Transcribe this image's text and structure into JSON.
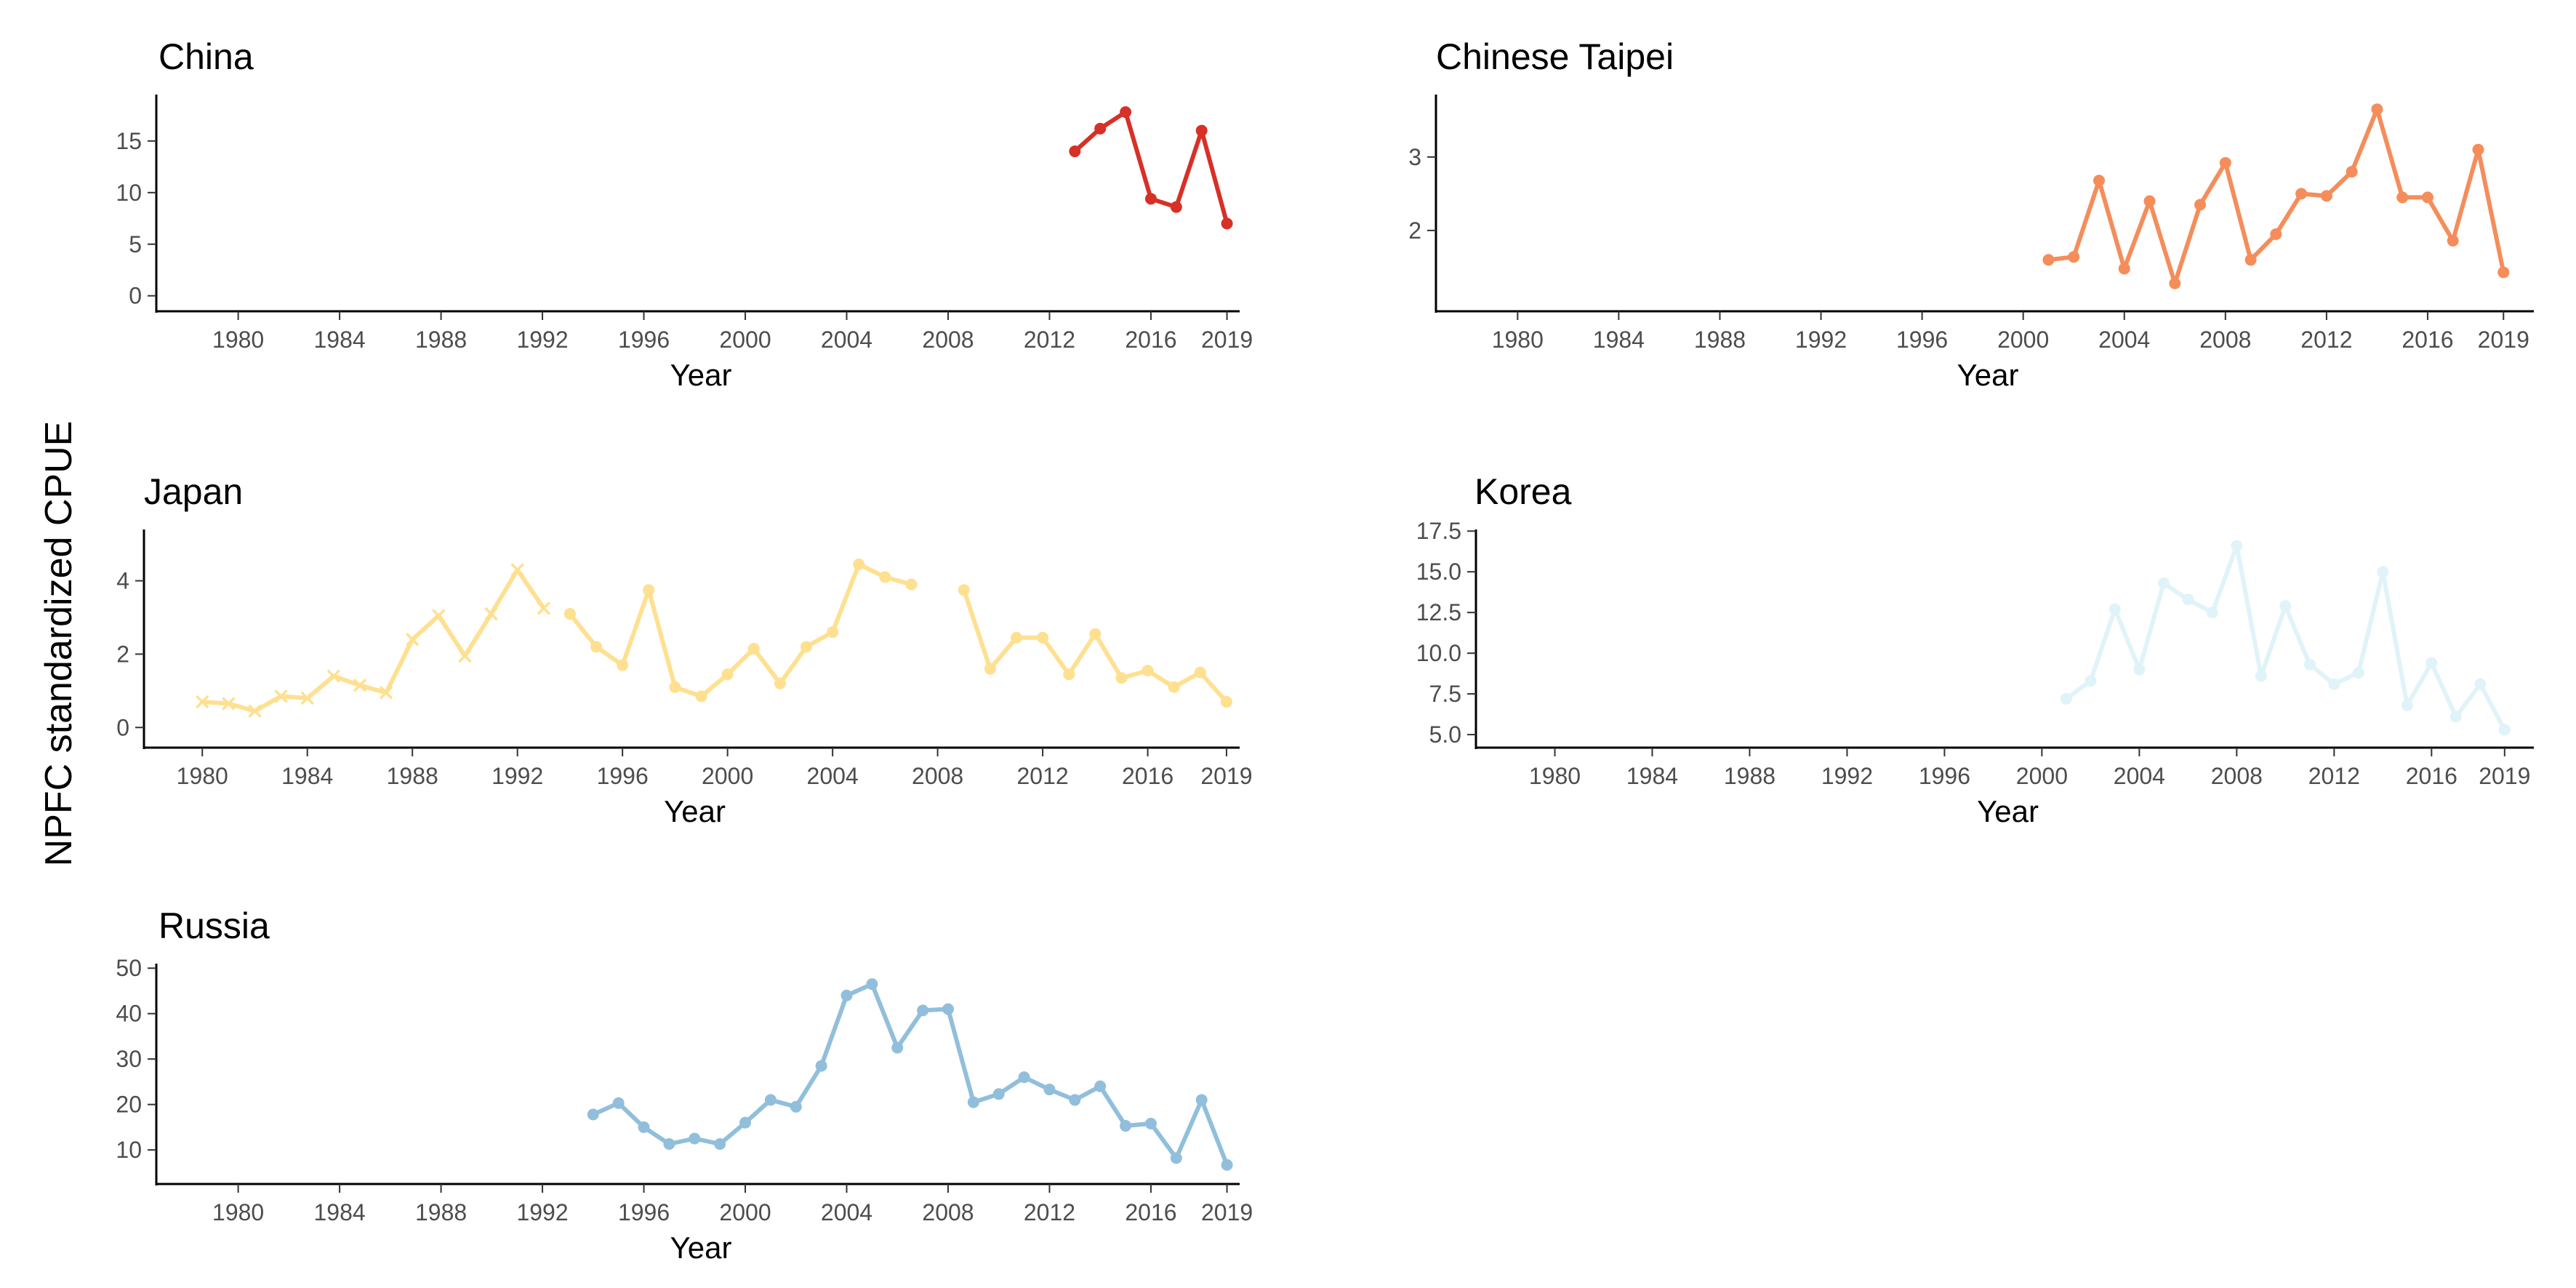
{
  "figure": {
    "ylabel": "NPFC standardized CPUE"
  },
  "chart_data": [
    {
      "type": "line",
      "title": "China",
      "xlabel": "Year",
      "ylabel": "",
      "color": "#d73027",
      "xlim": [
        1977,
        2019.5
      ],
      "ylim": [
        -1.5,
        19.5
      ],
      "xticks": [
        1980,
        1984,
        1988,
        1992,
        1996,
        2000,
        2004,
        2008,
        2012,
        2016,
        2019
      ],
      "yticks": [
        0,
        5,
        10,
        15
      ],
      "series": [
        {
          "marker": "circle",
          "x": [
            2013,
            2014,
            2015,
            2016,
            2017,
            2018,
            2019
          ],
          "y": [
            14.0,
            16.2,
            17.8,
            9.4,
            8.6,
            16.0,
            7.0
          ]
        }
      ]
    },
    {
      "type": "line",
      "title": "Chinese Taipei",
      "xlabel": "Year",
      "ylabel": "",
      "color": "#f58d5b",
      "xlim": [
        1977,
        2020.2
      ],
      "ylim": [
        0.9,
        3.85
      ],
      "xticks": [
        1980,
        1984,
        1988,
        1992,
        1996,
        2000,
        2004,
        2008,
        2012,
        2016,
        2019
      ],
      "yticks": [
        2,
        3
      ],
      "series": [
        {
          "marker": "circle",
          "x": [
            2001,
            2002,
            2003,
            2004,
            2005,
            2006,
            2007,
            2008,
            2009,
            2010,
            2011,
            2012,
            2013,
            2014,
            2015,
            2016,
            2017,
            2018,
            2019
          ],
          "y": [
            1.6,
            1.64,
            2.68,
            1.48,
            2.4,
            1.28,
            2.35,
            2.92,
            1.6,
            1.95,
            2.5,
            2.47,
            2.8,
            3.65,
            2.45,
            2.45,
            1.86,
            3.1,
            1.43
          ]
        }
      ]
    },
    {
      "type": "line",
      "title": "Japan",
      "xlabel": "Year",
      "ylabel": "",
      "color": "#fee090",
      "xlim": [
        1978,
        2019.5
      ],
      "ylim": [
        -0.55,
        5.4
      ],
      "xticks": [
        1980,
        1984,
        1988,
        1992,
        1996,
        2000,
        2004,
        2008,
        2012,
        2016,
        2019
      ],
      "yticks": [
        0,
        2,
        4
      ],
      "series": [
        {
          "marker": "cross",
          "x": [
            1980,
            1981,
            1982,
            1983,
            1984,
            1985,
            1986,
            1987,
            1988,
            1989,
            1990,
            1991,
            1992,
            1993
          ],
          "y": [
            0.7,
            0.65,
            0.45,
            0.85,
            0.8,
            1.4,
            1.15,
            0.95,
            2.4,
            3.05,
            1.95,
            3.1,
            4.3,
            3.25
          ]
        },
        {
          "marker": "circle",
          "x": [
            1994,
            1995,
            1996,
            1997,
            1998,
            1999,
            2000,
            2001,
            2002,
            2003,
            2004,
            2005,
            2006,
            2007
          ],
          "y": [
            3.1,
            2.2,
            1.7,
            3.75,
            1.1,
            0.85,
            1.45,
            2.15,
            1.2,
            2.2,
            2.6,
            4.45,
            4.1,
            3.9
          ]
        },
        {
          "marker": "circle",
          "x": [
            2009,
            2010,
            2011,
            2012,
            2013,
            2014,
            2015,
            2016,
            2017,
            2018,
            2019
          ],
          "y": [
            3.75,
            1.6,
            2.45,
            2.45,
            1.45,
            2.55,
            1.35,
            1.55,
            1.1,
            1.5,
            0.7
          ]
        }
      ]
    },
    {
      "type": "line",
      "title": "Korea",
      "xlabel": "Year",
      "ylabel": "",
      "color": "#e0f3f8",
      "xlim": [
        1977,
        2020.2
      ],
      "ylim": [
        4.2,
        17.6
      ],
      "xticks": [
        1980,
        1984,
        1988,
        1992,
        1996,
        2000,
        2004,
        2008,
        2012,
        2016,
        2019
      ],
      "yticks": [
        5.0,
        7.5,
        10.0,
        12.5,
        15.0,
        17.5
      ],
      "yticklabels": [
        "5.0",
        "7.5",
        "10.0",
        "12.5",
        "15.0",
        "17.5"
      ],
      "series": [
        {
          "marker": "circle",
          "x": [
            2001,
            2002,
            2003,
            2004,
            2005,
            2006,
            2007,
            2008,
            2009,
            2010,
            2011,
            2012,
            2013,
            2014,
            2015,
            2016,
            2017,
            2018,
            2019
          ],
          "y": [
            7.2,
            8.3,
            12.7,
            9.0,
            14.3,
            13.3,
            12.5,
            16.6,
            8.6,
            12.9,
            9.3,
            8.1,
            8.8,
            15.0,
            6.8,
            9.4,
            6.1,
            8.1,
            5.3
          ]
        }
      ]
    },
    {
      "type": "line",
      "title": "Russia",
      "xlabel": "Year",
      "ylabel": "",
      "color": "#91bfdb",
      "xlim": [
        1977,
        2019.5
      ],
      "ylim": [
        2.5,
        51
      ],
      "xticks": [
        1980,
        1984,
        1988,
        1992,
        1996,
        2000,
        2004,
        2008,
        2012,
        2016,
        2019
      ],
      "yticks": [
        10,
        20,
        30,
        40,
        50
      ],
      "series": [
        {
          "marker": "circle",
          "x": [
            1994,
            1995,
            1996,
            1997,
            1998,
            1999,
            2000,
            2001,
            2002,
            2003,
            2004,
            2005,
            2006,
            2007,
            2008,
            2009,
            2010,
            2011,
            2012,
            2013,
            2014,
            2015,
            2016,
            2017,
            2018,
            2019
          ],
          "y": [
            17.8,
            20.3,
            15.0,
            11.3,
            12.5,
            11.3,
            16.0,
            21.0,
            19.5,
            28.5,
            44.0,
            46.5,
            32.5,
            40.7,
            41.0,
            20.5,
            22.3,
            26.0,
            23.3,
            21.0,
            24.0,
            15.3,
            15.8,
            8.2,
            21.0,
            6.7
          ]
        }
      ]
    }
  ]
}
